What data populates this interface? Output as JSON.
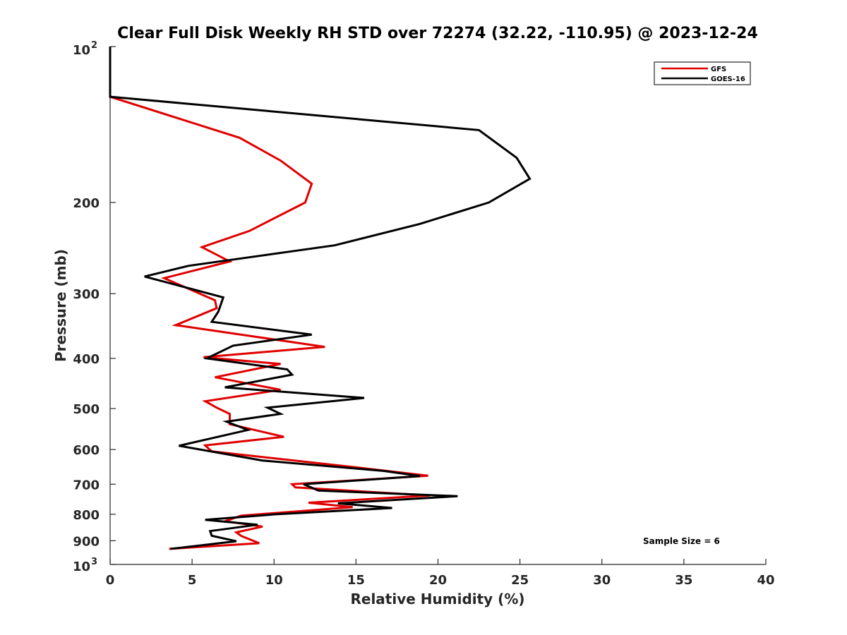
{
  "chart_data": {
    "type": "line",
    "title": "Clear Full Disk Weekly RH STD over 72274 (32.22, -110.95) @ 2023-12-24",
    "xlabel": "Relative Humidity (%)",
    "ylabel": "Pressure (mb)",
    "xlim": [
      0,
      40
    ],
    "ylim": [
      100,
      1000
    ],
    "y_scale": "log",
    "y_reversed": true,
    "x_ticks": [
      0,
      5,
      10,
      15,
      20,
      25,
      30,
      35,
      40
    ],
    "x_tick_labels": [
      "0",
      "5",
      "10",
      "15",
      "20",
      "25",
      "30",
      "35",
      "40"
    ],
    "y_ticks": [
      200,
      300,
      400,
      500,
      600,
      700,
      800,
      900
    ],
    "y_tick_labels": [
      "200",
      "300",
      "400",
      "500",
      "600",
      "700",
      "800",
      "900"
    ],
    "y_top_label": {
      "base": "10",
      "exp": "2"
    },
    "y_bottom_label": {
      "base": "10",
      "exp": "3"
    },
    "grid": false,
    "legend_position": "top-right",
    "annotation": "Sample Size = 6",
    "series": [
      {
        "name": "GFS",
        "color": "#e00000",
        "points": [
          [
            0,
            100
          ],
          [
            0,
            125
          ],
          [
            7.9,
            150
          ],
          [
            10.4,
            166
          ],
          [
            12.3,
            184
          ],
          [
            11.9,
            200
          ],
          [
            8.5,
            227
          ],
          [
            5.6,
            244
          ],
          [
            7.3,
            260
          ],
          [
            3.3,
            280
          ],
          [
            6.4,
            309
          ],
          [
            6.5,
            320
          ],
          [
            4.0,
            345
          ],
          [
            13.1,
            380
          ],
          [
            5.7,
            398
          ],
          [
            10.4,
            410
          ],
          [
            6.4,
            435
          ],
          [
            10.4,
            460
          ],
          [
            5.8,
            484
          ],
          [
            6.5,
            498
          ],
          [
            7.3,
            512
          ],
          [
            7.3,
            536
          ],
          [
            10.6,
            567
          ],
          [
            5.8,
            589
          ],
          [
            6.2,
            605
          ],
          [
            15.5,
            652
          ],
          [
            19.4,
            674
          ],
          [
            11.1,
            700
          ],
          [
            11.3,
            710
          ],
          [
            19.5,
            736
          ],
          [
            12.1,
            760
          ],
          [
            14.8,
            775
          ],
          [
            8.0,
            805
          ],
          [
            7.0,
            825
          ],
          [
            9.3,
            845
          ],
          [
            7.7,
            867
          ],
          [
            8.0,
            881
          ],
          [
            9.1,
            910
          ],
          [
            3.6,
            933
          ]
        ]
      },
      {
        "name": "GOES-16",
        "color": "#000000",
        "points": [
          [
            0,
            100
          ],
          [
            0,
            125
          ],
          [
            22.5,
            145
          ],
          [
            24.8,
            164
          ],
          [
            25.6,
            180
          ],
          [
            23.1,
            200
          ],
          [
            18.9,
            220
          ],
          [
            13.7,
            242
          ],
          [
            4.8,
            265
          ],
          [
            2.1,
            278
          ],
          [
            6.9,
            305
          ],
          [
            6.6,
            325
          ],
          [
            6.2,
            340
          ],
          [
            12.3,
            360
          ],
          [
            7.5,
            378
          ],
          [
            5.9,
            400
          ],
          [
            10.8,
            420
          ],
          [
            11.1,
            430
          ],
          [
            7.0,
            455
          ],
          [
            15.5,
            477
          ],
          [
            9.6,
            498
          ],
          [
            10.4,
            512
          ],
          [
            7.1,
            530
          ],
          [
            8.4,
            550
          ],
          [
            4.2,
            590
          ],
          [
            9.3,
            630
          ],
          [
            16.7,
            660
          ],
          [
            18.9,
            675
          ],
          [
            11.8,
            700
          ],
          [
            12.7,
            720
          ],
          [
            21.2,
            738
          ],
          [
            13.9,
            762
          ],
          [
            17.2,
            778
          ],
          [
            10.1,
            800
          ],
          [
            5.8,
            820
          ],
          [
            9.0,
            838
          ],
          [
            6.1,
            862
          ],
          [
            6.2,
            880
          ],
          [
            7.7,
            902
          ],
          [
            3.7,
            933
          ]
        ]
      }
    ]
  }
}
